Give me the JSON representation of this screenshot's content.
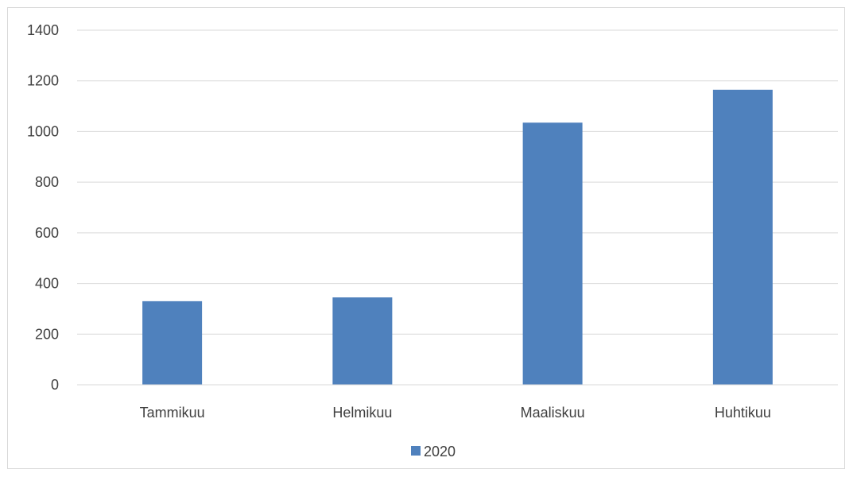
{
  "chart_data": {
    "type": "bar",
    "categories": [
      "Tammikuu",
      "Helmikuu",
      "Maaliskuu",
      "Huhtikuu"
    ],
    "series": [
      {
        "name": "2020",
        "values": [
          330,
          345,
          1035,
          1165
        ]
      }
    ],
    "title": "",
    "xlabel": "",
    "ylabel": "",
    "ylim": [
      0,
      1400
    ],
    "yticks": [
      "0",
      "200",
      "400",
      "600",
      "800",
      "1000",
      "1200",
      "1400"
    ],
    "grid": true,
    "legend_position": "bottom",
    "colors": {
      "bar": "#4f81bd",
      "grid": "#d9d9d9",
      "text": "#404040"
    }
  }
}
